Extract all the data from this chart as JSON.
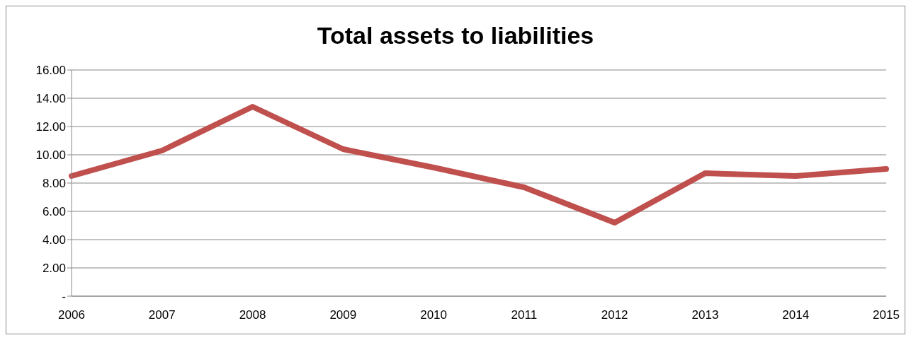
{
  "chart_data": {
    "type": "line",
    "title": "Total assets to liabilities",
    "categories": [
      "2006",
      "2007",
      "2008",
      "2009",
      "2010",
      "2011",
      "2012",
      "2013",
      "2014",
      "2015"
    ],
    "series": [
      {
        "color": "#c0504d",
        "values": [
          8.5,
          10.3,
          13.4,
          10.4,
          9.1,
          7.7,
          5.2,
          8.7,
          8.5,
          9.0
        ]
      }
    ],
    "ylim": [
      0,
      16
    ],
    "yticks": [
      {
        "value": 0,
        "label": "-"
      },
      {
        "value": 2,
        "label": "2.00"
      },
      {
        "value": 4,
        "label": "4.00"
      },
      {
        "value": 6,
        "label": "6.00"
      },
      {
        "value": 8,
        "label": "8.00"
      },
      {
        "value": 10,
        "label": "10.00"
      },
      {
        "value": 12,
        "label": "12.00"
      },
      {
        "value": 14,
        "label": "14.00"
      },
      {
        "value": 16,
        "label": "16.00"
      }
    ],
    "grid": "y",
    "legend": false,
    "marker": "none",
    "line_style": "solid"
  }
}
